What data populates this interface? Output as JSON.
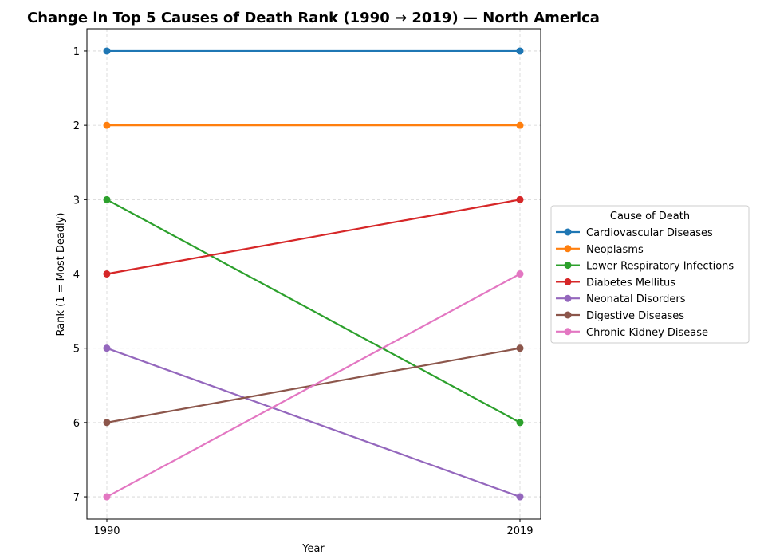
{
  "chart_data": {
    "type": "line",
    "title": "Change in Top 5 Causes of Death Rank (1990 → 2019) — North America",
    "xlabel": "Year",
    "ylabel": "Rank (1 = Most Deadly)",
    "x": [
      "1990",
      "2019"
    ],
    "y_ticks": [
      "1",
      "2",
      "3",
      "4",
      "5",
      "6",
      "7"
    ],
    "ylim": [
      7.3,
      0.7
    ],
    "y_inverted": true,
    "grid": true,
    "legend_title": "Cause of Death",
    "legend_position": "right",
    "series": [
      {
        "name": "Cardiovascular Diseases",
        "values": [
          1,
          1
        ],
        "color": "#1f77b4"
      },
      {
        "name": "Neoplasms",
        "values": [
          2,
          2
        ],
        "color": "#ff7f0e"
      },
      {
        "name": "Lower Respiratory Infections",
        "values": [
          3,
          6
        ],
        "color": "#2ca02c"
      },
      {
        "name": "Diabetes Mellitus",
        "values": [
          4,
          3
        ],
        "color": "#d62728"
      },
      {
        "name": "Neonatal Disorders",
        "values": [
          5,
          7
        ],
        "color": "#9467bd"
      },
      {
        "name": "Digestive Diseases",
        "values": [
          6,
          5
        ],
        "color": "#8c564b"
      },
      {
        "name": "Chronic Kidney Disease",
        "values": [
          7,
          4
        ],
        "color": "#e377c2"
      }
    ]
  }
}
